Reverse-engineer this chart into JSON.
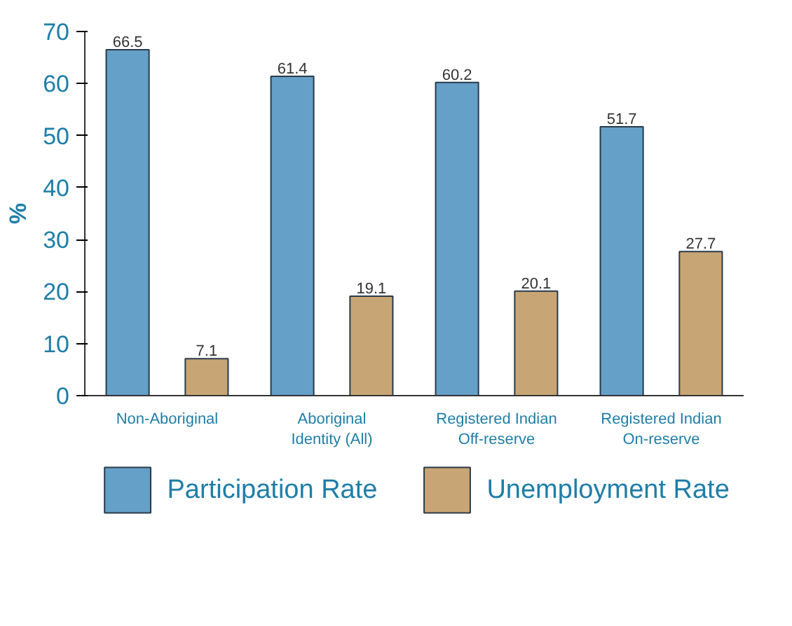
{
  "chart_data": {
    "type": "bar",
    "ylabel": "%",
    "categories": [
      "Non-Aboriginal",
      "Aboriginal\nIdentity (All)",
      "Registered Indian\nOff-reserve",
      "Registered Indian\nOn-reserve"
    ],
    "series": [
      {
        "name": "Participation Rate",
        "color": "#64a0c8",
        "values": [
          66.5,
          61.4,
          60.2,
          51.7
        ]
      },
      {
        "name": "Unemployment Rate",
        "color": "#c8a574",
        "values": [
          7.1,
          19.1,
          20.1,
          27.7
        ]
      }
    ],
    "ylim": [
      0,
      70
    ],
    "yticks": [
      0,
      10,
      20,
      30,
      40,
      50,
      60,
      70
    ],
    "data_labels": true,
    "legend": "bottom",
    "grid": false
  }
}
